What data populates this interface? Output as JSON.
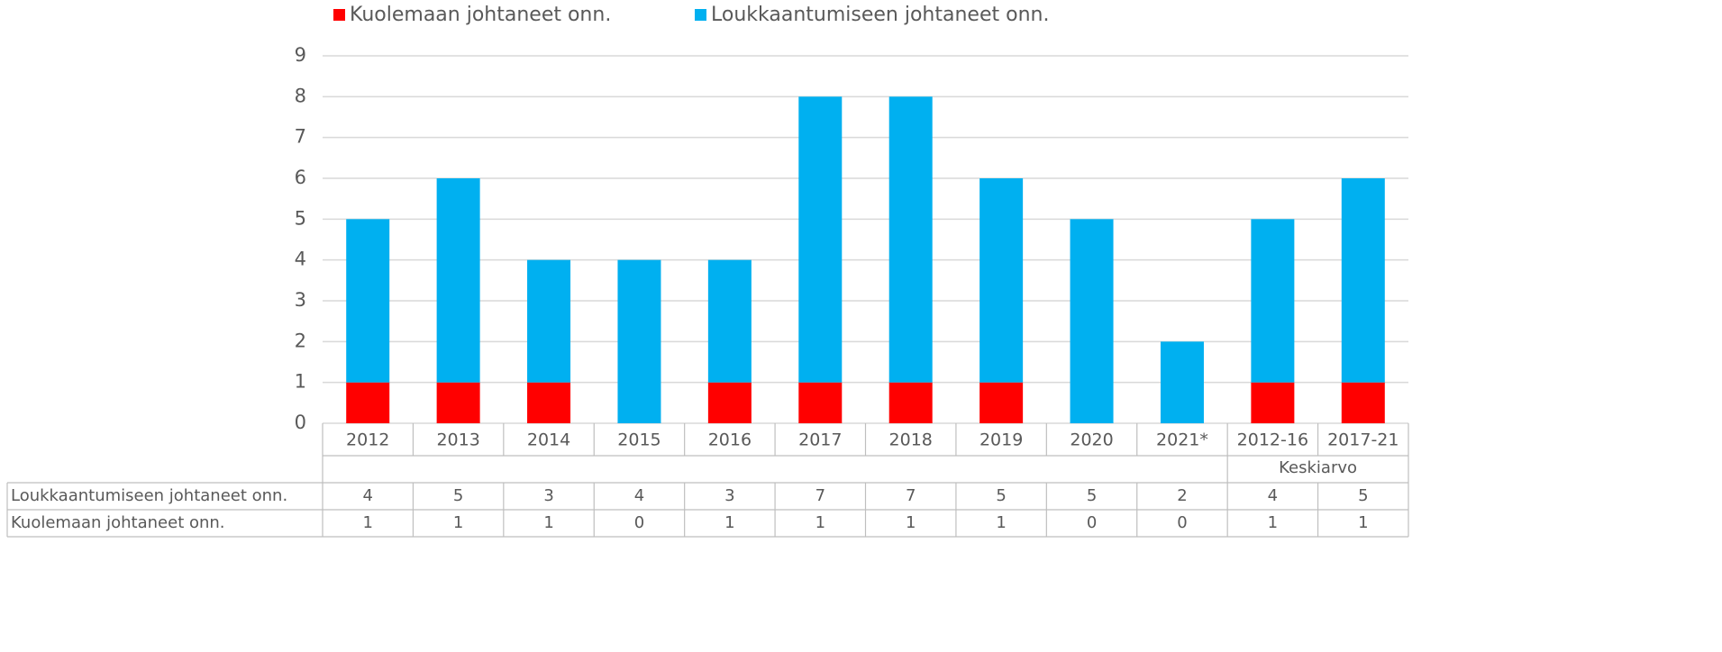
{
  "chart_data": {
    "type": "stacked_bar",
    "categories": [
      "2012",
      "2013",
      "2014",
      "2015",
      "2016",
      "2017",
      "2018",
      "2019",
      "2020",
      "2021*",
      "2012-16",
      "2017-21"
    ],
    "category_groups": [
      {
        "label": "Keskiarvo",
        "start": 10,
        "end": 11
      }
    ],
    "series": [
      {
        "name": "Kuolemaan johtaneet onn.",
        "color": "#ff0000",
        "values": [
          1,
          1,
          1,
          0,
          1,
          1,
          1,
          1,
          0,
          0,
          1,
          1
        ]
      },
      {
        "name": "Loukkaantumiseen johtaneet onn.",
        "color": "#00b0f0",
        "values": [
          4,
          5,
          3,
          4,
          3,
          7,
          7,
          5,
          5,
          2,
          4,
          5
        ]
      }
    ],
    "ylim": [
      0,
      9
    ],
    "yticks": [
      0,
      1,
      2,
      3,
      4,
      5,
      6,
      7,
      8,
      9
    ],
    "grid": true,
    "legend": "top",
    "data_table": true
  }
}
